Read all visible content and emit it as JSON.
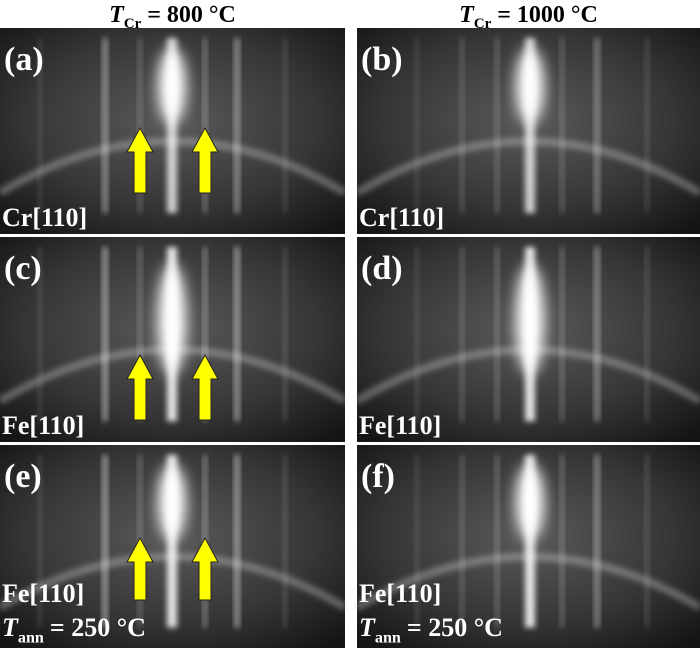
{
  "headers": [
    {
      "symbol": "T",
      "subscript": "Cr",
      "value": "= 800 °C"
    },
    {
      "symbol": "T",
      "subscript": "Cr",
      "value": "= 1000 °C"
    }
  ],
  "panels": [
    {
      "label": "(a)",
      "direction": "Cr[110]"
    },
    {
      "label": "(b)",
      "direction": "Cr[110]"
    },
    {
      "label": "(c)",
      "direction": "Fe[110]"
    },
    {
      "label": "(d)",
      "direction": "Fe[110]"
    },
    {
      "label": "(e)",
      "direction": "Fe[110]",
      "annotation": {
        "symbol": "T",
        "subscript": "ann",
        "value": "= 250 °C"
      }
    },
    {
      "label": "(f)",
      "direction": "Fe[110]",
      "annotation": {
        "symbol": "T",
        "subscript": "ann",
        "value": "= 250 °C"
      }
    }
  ]
}
